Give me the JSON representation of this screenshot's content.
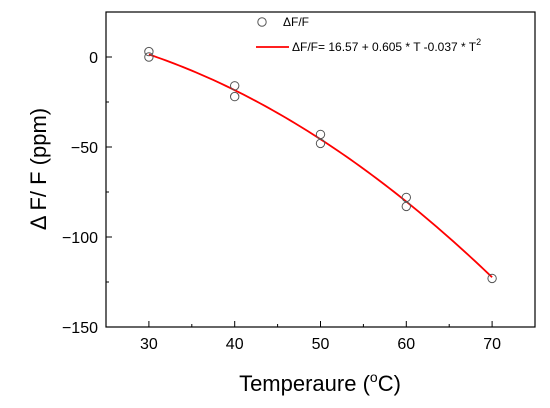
{
  "chart_data": {
    "type": "scatter",
    "xlabel": "Temperaure (",
    "xlabel_sup": "o",
    "xlabel_end": "C)",
    "ylabel": "Δ F/ F (ppm)",
    "xlim": [
      25,
      75
    ],
    "ylim": [
      -150,
      25
    ],
    "xticks": [
      30,
      40,
      50,
      60,
      70
    ],
    "yticks": [
      0,
      -50,
      -100,
      -150
    ],
    "grid": false,
    "legend_position": "top-right",
    "series": [
      {
        "name": "ΔF/F",
        "marker": "open-circle",
        "color": "#555555",
        "points": [
          {
            "x": 30,
            "y": 3
          },
          {
            "x": 30,
            "y": 0
          },
          {
            "x": 40,
            "y": -16
          },
          {
            "x": 40,
            "y": -22
          },
          {
            "x": 50,
            "y": -43
          },
          {
            "x": 50,
            "y": -48
          },
          {
            "x": 60,
            "y": -78
          },
          {
            "x": 60,
            "y": -83
          },
          {
            "x": 70,
            "y": -123
          }
        ]
      },
      {
        "name": "ΔF/F= 16.57 + 0.605 * T -0.037 * T",
        "name_sup": "2",
        "type": "fit-line",
        "color": "#ff0000",
        "x_range": [
          30,
          70
        ],
        "coefficients": [
          16.57,
          0.605,
          -0.037
        ]
      }
    ]
  }
}
